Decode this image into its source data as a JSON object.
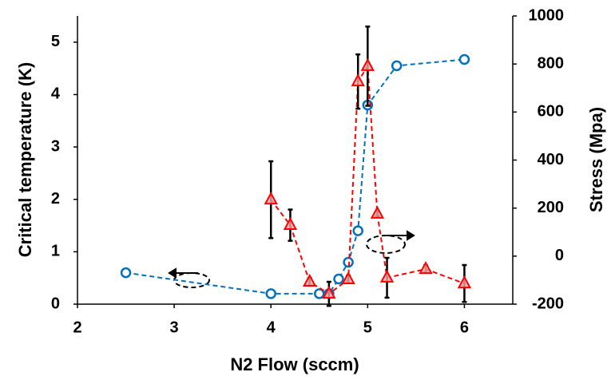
{
  "chart_data": {
    "type": "scatter",
    "x_label": "N2 Flow (sccm)",
    "y_label": "Critical temperature (K)",
    "y2_label": "Stress (Mpa)",
    "xlim": [
      2,
      6.5
    ],
    "xticks": [
      2,
      3,
      4,
      5,
      6
    ],
    "ylim": [
      0,
      5.5
    ],
    "yticks": [
      0,
      1,
      2,
      3,
      4,
      5
    ],
    "y2lim": [
      -200,
      1000
    ],
    "y2ticks": [
      -200,
      0,
      200,
      400,
      600,
      800,
      1000
    ],
    "grid": false,
    "series": [
      {
        "color": "#0070c0",
        "marker": "circle",
        "axis": "y",
        "x": [
          2.5,
          4,
          4.5,
          4.6,
          4.7,
          4.8,
          4.9,
          5.0,
          5.3,
          6
        ],
        "values": [
          0.6,
          0.2,
          0.2,
          0.2,
          0.48,
          0.8,
          1.4,
          3.8,
          4.55,
          4.67
        ]
      },
      {
        "color": "#ff0000",
        "marker": "triangle",
        "axis": "y2",
        "x": [
          4,
          4.2,
          4.4,
          4.6,
          4.8,
          4.9,
          5.0,
          5.1,
          5.2,
          5.6,
          6
        ],
        "values": [
          235,
          129,
          -107,
          -157,
          -97,
          727,
          791,
          176,
          -90,
          -54,
          -114
        ],
        "errors": [
          160,
          65,
          15,
          50,
          15,
          113,
          165,
          10,
          83,
          15,
          77
        ]
      }
    ]
  }
}
